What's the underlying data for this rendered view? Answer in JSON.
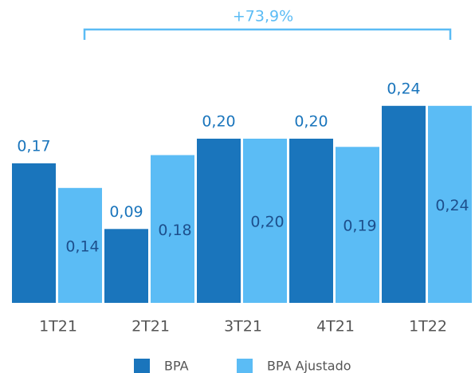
{
  "chart_data": {
    "type": "bar",
    "annotation": "+73,9%",
    "categories": [
      "1T21",
      "2T21",
      "3T21",
      "4T21",
      "1T22"
    ],
    "series": [
      {
        "name": "BPA",
        "color": "#1a75bc",
        "values": [
          0.17,
          0.09,
          0.2,
          0.2,
          0.24
        ],
        "value_labels": [
          "0,17",
          "0,09",
          "0,20",
          "0,20",
          "0,24"
        ]
      },
      {
        "name": "BPA Ajustado",
        "color": "#5bbcf5",
        "values": [
          0.14,
          0.18,
          0.2,
          0.19,
          0.24
        ],
        "value_labels": [
          "0,14",
          "0,18",
          "0,20",
          "0,19",
          "0,24"
        ]
      }
    ],
    "ylim": [
      0,
      0.3
    ],
    "legend": "bottom"
  }
}
